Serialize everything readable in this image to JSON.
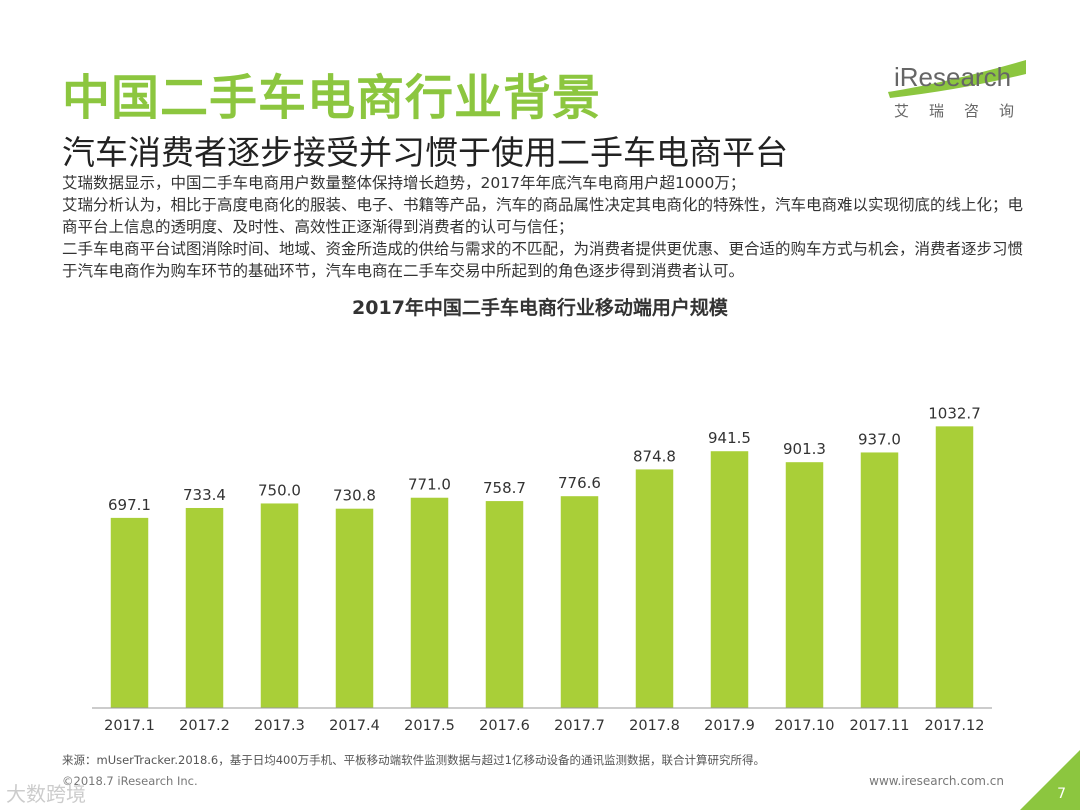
{
  "header": {
    "title": "中国二手车电商行业背景",
    "subtitle": "汽车消费者逐步接受并习惯于使用二手车电商平台"
  },
  "body": {
    "paragraphs": [
      "艾瑞数据显示，中国二手车电商用户数量整体保持增长趋势，2017年年底汽车电商用户超1000万；",
      "艾瑞分析认为，相比于高度电商化的服装、电子、书籍等产品，汽车的商品属性决定其电商化的特殊性，汽车电商难以实现彻底的线上化；电商平台上信息的透明度、及时性、高效性正逐渐得到消费者的认可与信任；",
      "二手车电商平台试图消除时间、地域、资金所造成的供给与需求的不匹配，为消费者提供更优惠、更合适的购车方式与机会，消费者逐步习惯于汽车电商作为购车环节的基础环节，汽车电商在二手车交易中所起到的角色逐步得到消费者认可。"
    ]
  },
  "logo": {
    "word": "iResearch",
    "cn": "艾瑞咨询"
  },
  "colors": {
    "bar": "#a9cf38",
    "title": "#8cc63f",
    "corner": "#8cc63f"
  },
  "chart_data": {
    "type": "bar",
    "title": "2017年中国二手车电商行业移动端用户规模",
    "categories": [
      "2017.1",
      "2017.2",
      "2017.3",
      "2017.4",
      "2017.5",
      "2017.6",
      "2017.7",
      "2017.8",
      "2017.9",
      "2017.10",
      "2017.11",
      "2017.12"
    ],
    "values": [
      697.1,
      733.4,
      750.0,
      730.8,
      771.0,
      758.7,
      776.6,
      874.8,
      941.5,
      901.3,
      937.0,
      1032.7
    ],
    "labels": [
      "697.1",
      "733.4",
      "750.0",
      "730.8",
      "771.0",
      "758.7",
      "776.6",
      "874.8",
      "941.5",
      "901.3",
      "937.0",
      "1032.7"
    ],
    "xlabel": "",
    "ylabel": "",
    "ylim": [
      0,
      1100
    ],
    "grid": false
  },
  "footer": {
    "source": "来源：mUserTracker.2018.6，基于日均400万手机、平板移动端软件监测数据与超过1亿移动设备的通讯监测数据，联合计算研究所得。",
    "copyright": "©2018.7 iResearch Inc.",
    "website": "www.iresearch.com.cn",
    "page": "7",
    "watermark": "大数跨境"
  }
}
